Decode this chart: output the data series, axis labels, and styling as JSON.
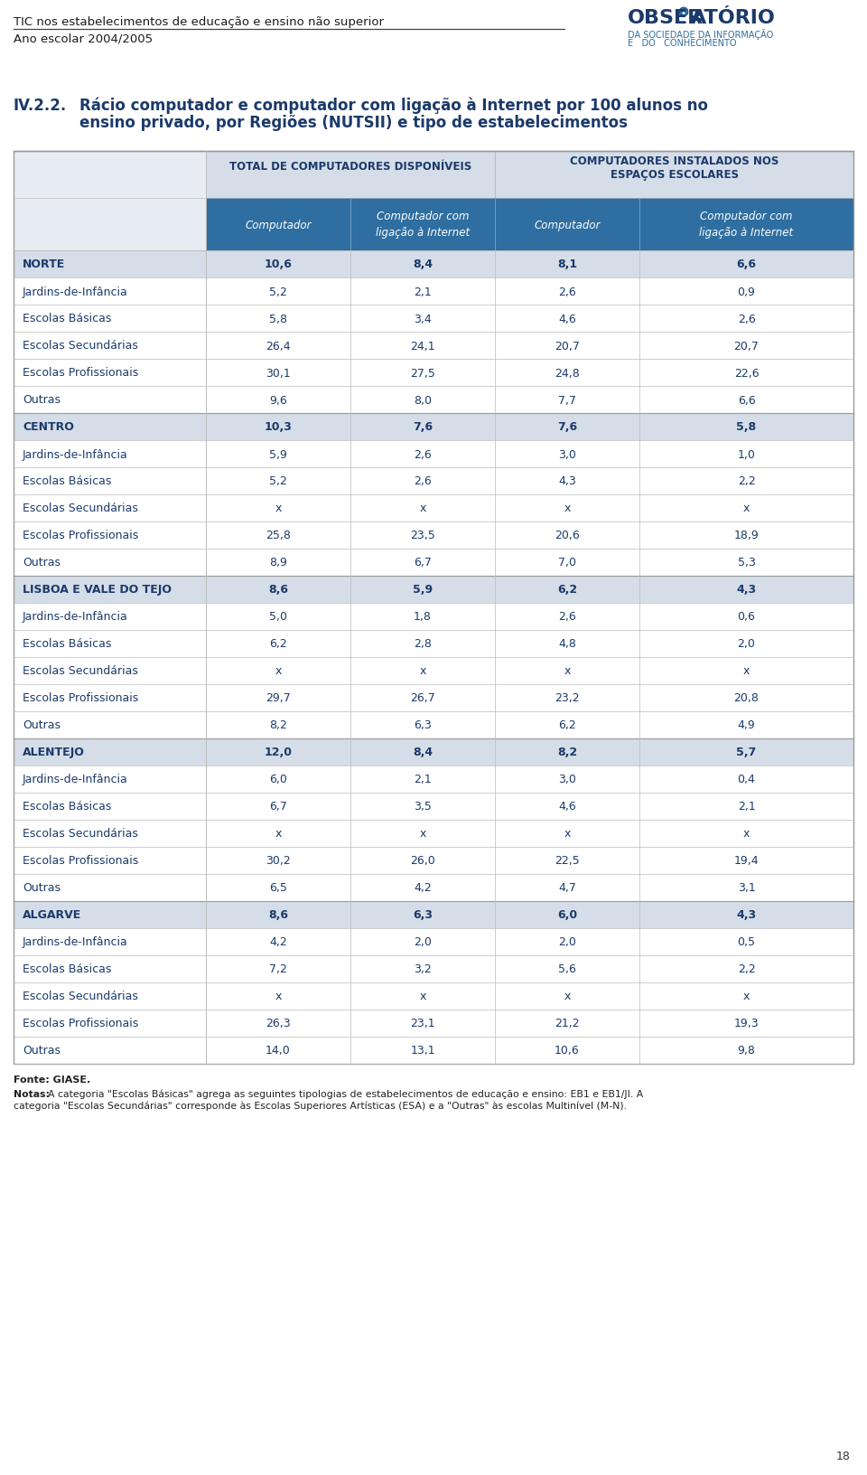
{
  "header_line1": "TIC nos estabelecimentos de educação e ensino não superior",
  "header_line2": "Ano escolar 2004/2005",
  "page_number": "18",
  "title_num": "IV.2.2.",
  "title_text1": "Rácio computador e computador com ligação à Internet por 100 alunos no",
  "title_text2": "ensino privado, por Regiões (NUTSII) e tipo de estabelecimentos",
  "col_group1": "TOTAL DE COMPUTADORES DISPONÍVEIS",
  "col_group2_line1": "COMPUTADORES INSTALADOS NOS",
  "col_group2_line2": "ESPAÇOS ESCOLARES",
  "col1": "Computador",
  "col2_line1": "Computador com",
  "col2_line2": "ligação à Internet",
  "col3": "Computador",
  "col4_line1": "Computador com",
  "col4_line2": "ligação à Internet",
  "rows": [
    {
      "label": "Norte",
      "label_display": "NORTE",
      "bold": true,
      "region": true,
      "alt": false,
      "v1": "10,6",
      "v2": "8,4",
      "v3": "8,1",
      "v4": "6,6"
    },
    {
      "label": "Jardins-de-Infância",
      "label_display": "Jardins-de-Infância",
      "bold": false,
      "region": false,
      "alt": false,
      "v1": "5,2",
      "v2": "2,1",
      "v3": "2,6",
      "v4": "0,9"
    },
    {
      "label": "Escolas Básicas",
      "label_display": "Escolas Básicas",
      "bold": false,
      "region": false,
      "alt": false,
      "v1": "5,8",
      "v2": "3,4",
      "v3": "4,6",
      "v4": "2,6"
    },
    {
      "label": "Escolas Secundárias",
      "label_display": "Escolas Secundárias",
      "bold": false,
      "region": false,
      "alt": false,
      "v1": "26,4",
      "v2": "24,1",
      "v3": "20,7",
      "v4": "20,7"
    },
    {
      "label": "Escolas Profissionais",
      "label_display": "Escolas Profissionais",
      "bold": false,
      "region": false,
      "alt": false,
      "v1": "30,1",
      "v2": "27,5",
      "v3": "24,8",
      "v4": "22,6"
    },
    {
      "label": "Outras",
      "label_display": "Outras",
      "bold": false,
      "region": false,
      "alt": false,
      "v1": "9,6",
      "v2": "8,0",
      "v3": "7,7",
      "v4": "6,6"
    },
    {
      "label": "Centro",
      "label_display": "CENTRO",
      "bold": true,
      "region": true,
      "alt": false,
      "v1": "10,3",
      "v2": "7,6",
      "v3": "7,6",
      "v4": "5,8"
    },
    {
      "label": "Jardins-de-Infância",
      "label_display": "Jardins-de-Infância",
      "bold": false,
      "region": false,
      "alt": false,
      "v1": "5,9",
      "v2": "2,6",
      "v3": "3,0",
      "v4": "1,0"
    },
    {
      "label": "Escolas Básicas",
      "label_display": "Escolas Básicas",
      "bold": false,
      "region": false,
      "alt": false,
      "v1": "5,2",
      "v2": "2,6",
      "v3": "4,3",
      "v4": "2,2"
    },
    {
      "label": "Escolas Secundárias",
      "label_display": "Escolas Secundárias",
      "bold": false,
      "region": false,
      "alt": false,
      "v1": "x",
      "v2": "x",
      "v3": "x",
      "v4": "x"
    },
    {
      "label": "Escolas Profissionais",
      "label_display": "Escolas Profissionais",
      "bold": false,
      "region": false,
      "alt": false,
      "v1": "25,8",
      "v2": "23,5",
      "v3": "20,6",
      "v4": "18,9"
    },
    {
      "label": "Outras",
      "label_display": "Outras",
      "bold": false,
      "region": false,
      "alt": false,
      "v1": "8,9",
      "v2": "6,7",
      "v3": "7,0",
      "v4": "5,3"
    },
    {
      "label": "Lisboa e Vale do Tejo",
      "label_display": "LISBOA E VALE DO TEJO",
      "bold": true,
      "region": true,
      "alt": false,
      "v1": "8,6",
      "v2": "5,9",
      "v3": "6,2",
      "v4": "4,3"
    },
    {
      "label": "Jardins-de-Infância",
      "label_display": "Jardins-de-Infância",
      "bold": false,
      "region": false,
      "alt": false,
      "v1": "5,0",
      "v2": "1,8",
      "v3": "2,6",
      "v4": "0,6"
    },
    {
      "label": "Escolas Básicas",
      "label_display": "Escolas Básicas",
      "bold": false,
      "region": false,
      "alt": false,
      "v1": "6,2",
      "v2": "2,8",
      "v3": "4,8",
      "v4": "2,0"
    },
    {
      "label": "Escolas Secundárias",
      "label_display": "Escolas Secundárias",
      "bold": false,
      "region": false,
      "alt": false,
      "v1": "x",
      "v2": "x",
      "v3": "x",
      "v4": "x"
    },
    {
      "label": "Escolas Profissionais",
      "label_display": "Escolas Profissionais",
      "bold": false,
      "region": false,
      "alt": false,
      "v1": "29,7",
      "v2": "26,7",
      "v3": "23,2",
      "v4": "20,8"
    },
    {
      "label": "Outras",
      "label_display": "Outras",
      "bold": false,
      "region": false,
      "alt": false,
      "v1": "8,2",
      "v2": "6,3",
      "v3": "6,2",
      "v4": "4,9"
    },
    {
      "label": "Alentejo",
      "label_display": "ALENTEJO",
      "bold": true,
      "region": true,
      "alt": false,
      "v1": "12,0",
      "v2": "8,4",
      "v3": "8,2",
      "v4": "5,7"
    },
    {
      "label": "Jardins-de-Infância",
      "label_display": "Jardins-de-Infância",
      "bold": false,
      "region": false,
      "alt": false,
      "v1": "6,0",
      "v2": "2,1",
      "v3": "3,0",
      "v4": "0,4"
    },
    {
      "label": "Escolas Básicas",
      "label_display": "Escolas Básicas",
      "bold": false,
      "region": false,
      "alt": false,
      "v1": "6,7",
      "v2": "3,5",
      "v3": "4,6",
      "v4": "2,1"
    },
    {
      "label": "Escolas Secundárias",
      "label_display": "Escolas Secundárias",
      "bold": false,
      "region": false,
      "alt": false,
      "v1": "x",
      "v2": "x",
      "v3": "x",
      "v4": "x"
    },
    {
      "label": "Escolas Profissionais",
      "label_display": "Escolas Profissionais",
      "bold": false,
      "region": false,
      "alt": false,
      "v1": "30,2",
      "v2": "26,0",
      "v3": "22,5",
      "v4": "19,4"
    },
    {
      "label": "Outras",
      "label_display": "Outras",
      "bold": false,
      "region": false,
      "alt": false,
      "v1": "6,5",
      "v2": "4,2",
      "v3": "4,7",
      "v4": "3,1"
    },
    {
      "label": "Algarve",
      "label_display": "ALGARVE",
      "bold": true,
      "region": true,
      "alt": false,
      "v1": "8,6",
      "v2": "6,3",
      "v3": "6,0",
      "v4": "4,3"
    },
    {
      "label": "Jardins-de-Infância",
      "label_display": "Jardins-de-Infância",
      "bold": false,
      "region": false,
      "alt": false,
      "v1": "4,2",
      "v2": "2,0",
      "v3": "2,0",
      "v4": "0,5"
    },
    {
      "label": "Escolas Básicas",
      "label_display": "Escolas Básicas",
      "bold": false,
      "region": false,
      "alt": false,
      "v1": "7,2",
      "v2": "3,2",
      "v3": "5,6",
      "v4": "2,2"
    },
    {
      "label": "Escolas Secundárias",
      "label_display": "Escolas Secundárias",
      "bold": false,
      "region": false,
      "alt": false,
      "v1": "x",
      "v2": "x",
      "v3": "x",
      "v4": "x"
    },
    {
      "label": "Escolas Profissionais",
      "label_display": "Escolas Profissionais",
      "bold": false,
      "region": false,
      "alt": false,
      "v1": "26,3",
      "v2": "23,1",
      "v3": "21,2",
      "v4": "19,3"
    },
    {
      "label": "Outras",
      "label_display": "Outras",
      "bold": false,
      "region": false,
      "alt": false,
      "v1": "14,0",
      "v2": "13,1",
      "v3": "10,6",
      "v4": "9,8"
    }
  ],
  "footer_source": "Fonte: GIASE.",
  "footer_note_bold": "Notas:",
  "footer_note_rest": " A categoria \"Escolas Básicas\" agrega as seguintes tipologias de estabelecimentos de educação e ensino: EB1 e EB1/JI. A categoria \"Escolas Secundárias\" corresponde às Escolas Superiores Artísticas (ESA) e a \"Outras\" às escolas Multinível (M-N).",
  "color_teal_header": "#2F6EA0",
  "color_region_bg": "#D5DDE8",
  "color_alt_bg": "#EBF0F5",
  "color_white_bg": "#FFFFFF",
  "color_dark_blue": "#1B3A6B",
  "color_divider": "#BBBBBB",
  "color_outer_border": "#999999",
  "color_group_header_bg": "#D5DDE8",
  "color_label_col_bg": "#E8EDF3"
}
